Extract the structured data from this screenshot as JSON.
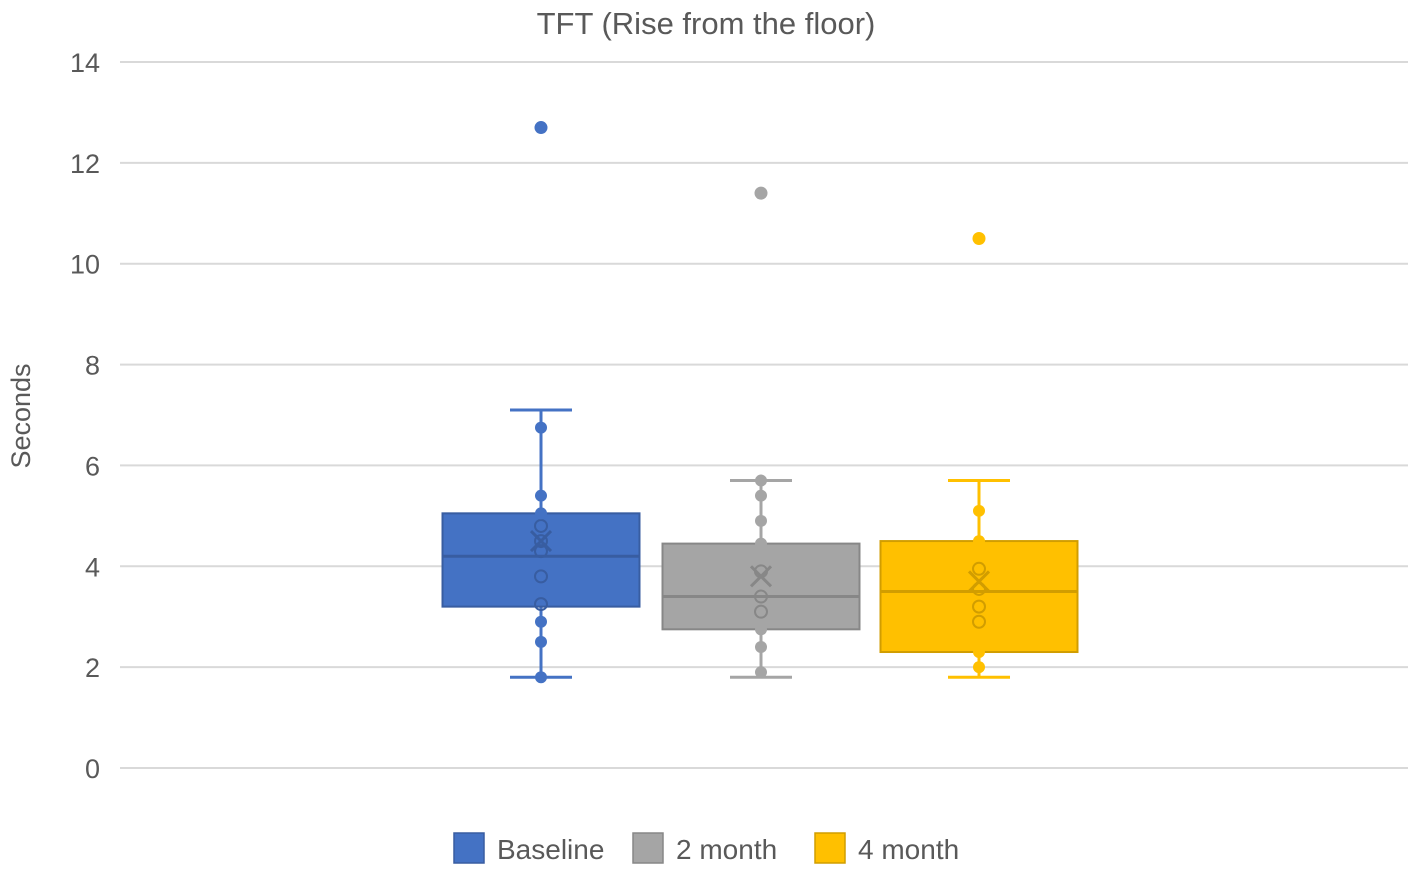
{
  "chart_data": {
    "type": "box",
    "title": "TFT (Rise from the floor)",
    "xlabel": "",
    "ylabel": "Seconds",
    "ylim": [
      0,
      14
    ],
    "yticks": [
      0,
      2,
      4,
      6,
      8,
      10,
      12,
      14
    ],
    "grid": true,
    "legend_position": "bottom",
    "series": [
      {
        "name": "Baseline",
        "color": "#4472C4",
        "min": 1.8,
        "q1": 3.2,
        "median": 4.2,
        "q3": 5.05,
        "max": 7.1,
        "mean": 4.5,
        "points": [
          1.8,
          2.5,
          2.9,
          3.25,
          3.8,
          4.3,
          4.5,
          4.8,
          5.05,
          5.4,
          6.75
        ],
        "outliers": [
          12.7
        ]
      },
      {
        "name": "2 month",
        "color": "#A5A5A5",
        "min": 1.8,
        "q1": 2.75,
        "median": 3.4,
        "q3": 4.45,
        "max": 5.7,
        "mean": 3.8,
        "points": [
          1.9,
          2.4,
          2.75,
          3.1,
          3.4,
          3.9,
          4.45,
          4.9,
          5.4,
          5.7
        ],
        "outliers": [
          11.4
        ]
      },
      {
        "name": "4 month",
        "color": "#FFC000",
        "min": 1.8,
        "q1": 2.3,
        "median": 3.5,
        "q3": 4.5,
        "max": 5.7,
        "mean": 3.7,
        "points": [
          2.0,
          2.3,
          2.9,
          3.2,
          3.55,
          3.95,
          4.5,
          5.1
        ],
        "outliers": [
          10.5
        ]
      }
    ]
  }
}
